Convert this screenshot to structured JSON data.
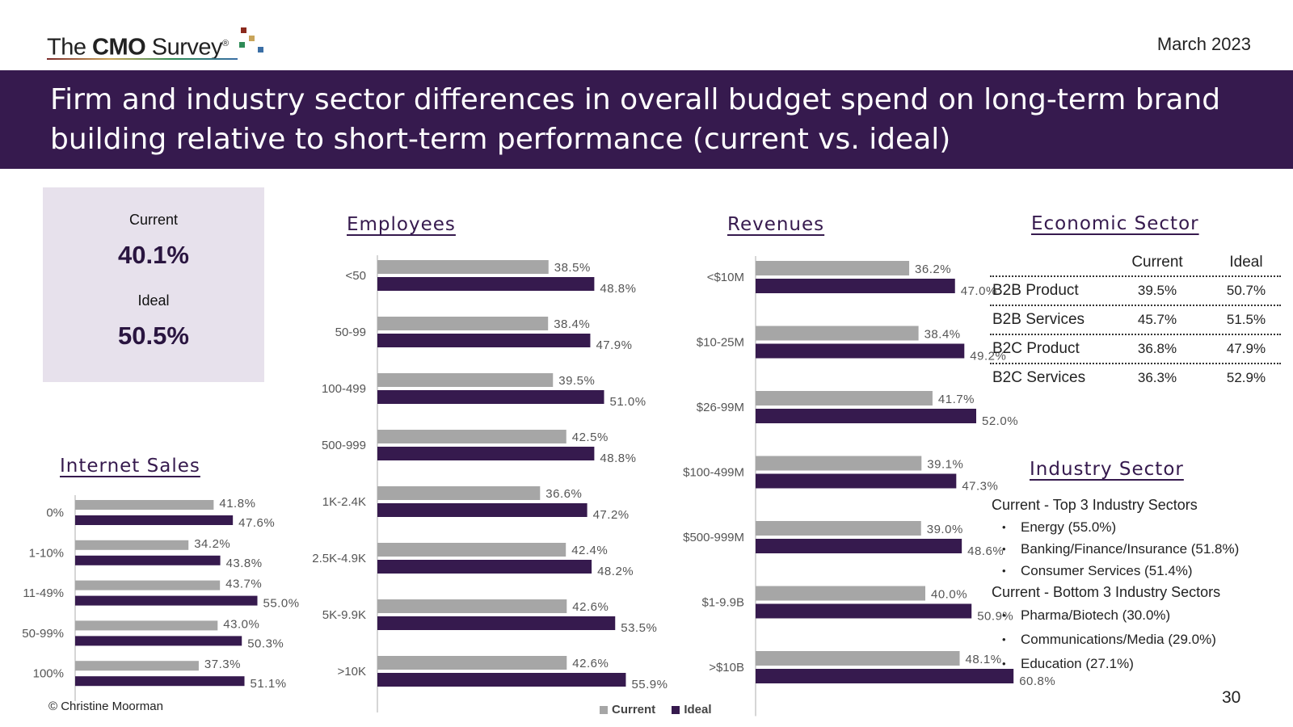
{
  "logo": {
    "prefix": "The ",
    "brand": "CMO",
    "suffix": " Survey",
    "registered": "®"
  },
  "date": "March 2023",
  "title": "Firm and industry sector differences in overall budget spend on long-term brand building relative to short-term performance (current vs. ideal)",
  "summary": {
    "current_label": "Current",
    "current_value": "40.1%",
    "ideal_label": "Ideal",
    "ideal_value": "50.5%"
  },
  "colors": {
    "current": "#a6a6a6",
    "ideal": "#361a4e",
    "banner": "#361a4e",
    "summary_bg": "#e7e1ec"
  },
  "chart_data": [
    {
      "type": "bar",
      "orientation": "horizontal",
      "title": "Employees",
      "categories": [
        "<50",
        "50-99",
        "100-499",
        "500-999",
        "1K-2.4K",
        "2.5K-4.9K",
        "5K-9.9K",
        ">10K"
      ],
      "series": [
        {
          "name": "Current",
          "values": [
            38.5,
            38.4,
            39.5,
            42.5,
            36.6,
            42.4,
            42.6,
            42.6
          ]
        },
        {
          "name": "Ideal",
          "values": [
            48.8,
            47.9,
            51.0,
            48.8,
            47.2,
            48.2,
            53.5,
            55.9
          ]
        }
      ],
      "unit": "%"
    },
    {
      "type": "bar",
      "orientation": "horizontal",
      "title": "Revenues",
      "categories": [
        "<$10M",
        "$10-25M",
        "$26-99M",
        "$100-499M",
        "$500-999M",
        "$1-9.9B",
        ">$10B"
      ],
      "series": [
        {
          "name": "Current",
          "values": [
            36.2,
            38.4,
            41.7,
            39.1,
            39.0,
            40.0,
            48.1
          ]
        },
        {
          "name": "Ideal",
          "values": [
            47.0,
            49.2,
            52.0,
            47.3,
            48.6,
            50.9,
            60.8
          ]
        }
      ],
      "unit": "%"
    },
    {
      "type": "bar",
      "orientation": "horizontal",
      "title": "Internet Sales",
      "categories": [
        "0%",
        "1-10%",
        "11-49%",
        "50-99%",
        "100%"
      ],
      "series": [
        {
          "name": "Current",
          "values": [
            41.8,
            34.2,
            43.7,
            43.0,
            37.3
          ]
        },
        {
          "name": "Ideal",
          "values": [
            47.6,
            43.8,
            55.0,
            50.3,
            51.1
          ]
        }
      ],
      "unit": "%"
    },
    {
      "type": "table",
      "title": "Economic Sector",
      "columns": [
        "",
        "Current",
        "Ideal"
      ],
      "rows": [
        {
          "name": "B2B Product",
          "current": "39.5%",
          "ideal": "50.7%"
        },
        {
          "name": "B2B Services",
          "current": "45.7%",
          "ideal": "51.5%"
        },
        {
          "name": "B2C Product",
          "current": "36.8%",
          "ideal": "47.9%"
        },
        {
          "name": "B2C Services",
          "current": "36.3%",
          "ideal": "52.9%"
        }
      ]
    }
  ],
  "industry": {
    "title": "Industry Sector",
    "top_title": "Current - Top 3 Industry Sectors",
    "top": [
      "Energy (55.0%)",
      "Banking/Finance/Insurance (51.8%)",
      "Consumer Services (51.4%)"
    ],
    "bottom_title": "Current - Bottom 3 Industry Sectors",
    "bottom": [
      "Pharma/Biotech (30.0%)",
      "Communications/Media (29.0%)",
      "Education (27.1%)"
    ]
  },
  "legend": {
    "current": "Current",
    "ideal": "Ideal"
  },
  "footer": {
    "copyright": "© Christine Moorman",
    "page": "30"
  }
}
